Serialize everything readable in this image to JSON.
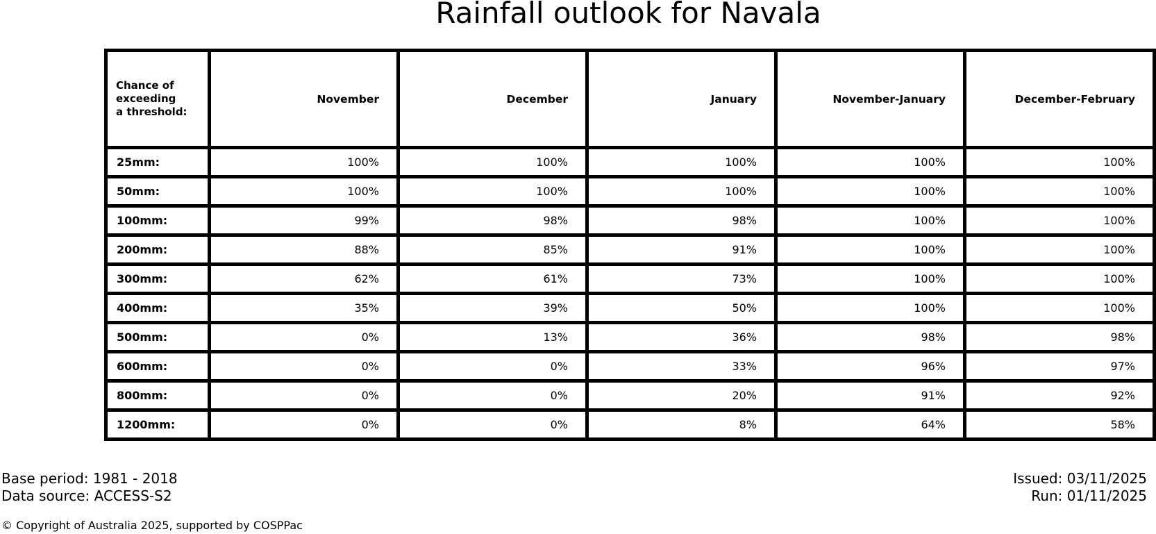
{
  "title": "Rainfall outlook for Navala",
  "table": {
    "corner_header": "Chance of\nexceeding\na threshold:",
    "columns": [
      "November",
      "December",
      "January",
      "November-January",
      "December-February"
    ],
    "rows": [
      {
        "label": "25mm:",
        "values": [
          "100%",
          "100%",
          "100%",
          "100%",
          "100%"
        ]
      },
      {
        "label": "50mm:",
        "values": [
          "100%",
          "100%",
          "100%",
          "100%",
          "100%"
        ]
      },
      {
        "label": "100mm:",
        "values": [
          "99%",
          "98%",
          "98%",
          "100%",
          "100%"
        ]
      },
      {
        "label": "200mm:",
        "values": [
          "88%",
          "85%",
          "91%",
          "100%",
          "100%"
        ]
      },
      {
        "label": "300mm:",
        "values": [
          "62%",
          "61%",
          "73%",
          "100%",
          "100%"
        ]
      },
      {
        "label": "400mm:",
        "values": [
          "35%",
          "39%",
          "50%",
          "100%",
          "100%"
        ]
      },
      {
        "label": "500mm:",
        "values": [
          "0%",
          "13%",
          "36%",
          "98%",
          "98%"
        ]
      },
      {
        "label": "600mm:",
        "values": [
          "0%",
          "0%",
          "33%",
          "96%",
          "97%"
        ]
      },
      {
        "label": "800mm:",
        "values": [
          "0%",
          "0%",
          "20%",
          "91%",
          "92%"
        ]
      },
      {
        "label": "1200mm:",
        "values": [
          "0%",
          "0%",
          "8%",
          "64%",
          "58%"
        ]
      }
    ]
  },
  "footer": {
    "base_period": "Base period: 1981 - 2018",
    "data_source": "Data source: ACCESS-S2",
    "issued": "Issued: 03/11/2025",
    "run": "Run: 01/11/2025",
    "copyright": "© Copyright of Australia 2025, supported by COSPPac"
  },
  "colors": {
    "background": "#ffffff",
    "text": "#000000",
    "border": "#000000"
  },
  "chart_data": {
    "type": "table",
    "title": "Rainfall outlook for Navala",
    "row_header": "Chance of exceeding a threshold:",
    "columns": [
      "November",
      "December",
      "January",
      "November-January",
      "December-February"
    ],
    "thresholds_mm": [
      25,
      50,
      100,
      200,
      300,
      400,
      500,
      600,
      800,
      1200
    ],
    "probabilities_percent": {
      "November": [
        100,
        100,
        99,
        88,
        62,
        35,
        0,
        0,
        0,
        0
      ],
      "December": [
        100,
        100,
        98,
        85,
        61,
        39,
        13,
        0,
        0,
        0
      ],
      "January": [
        100,
        100,
        98,
        91,
        73,
        50,
        36,
        33,
        20,
        8
      ],
      "November-January": [
        100,
        100,
        100,
        100,
        100,
        100,
        98,
        96,
        91,
        64
      ],
      "December-February": [
        100,
        100,
        100,
        100,
        100,
        100,
        98,
        97,
        92,
        58
      ]
    },
    "notes": {
      "base_period": "1981 - 2018",
      "data_source": "ACCESS-S2",
      "issued": "03/11/2025",
      "run": "01/11/2025"
    }
  }
}
